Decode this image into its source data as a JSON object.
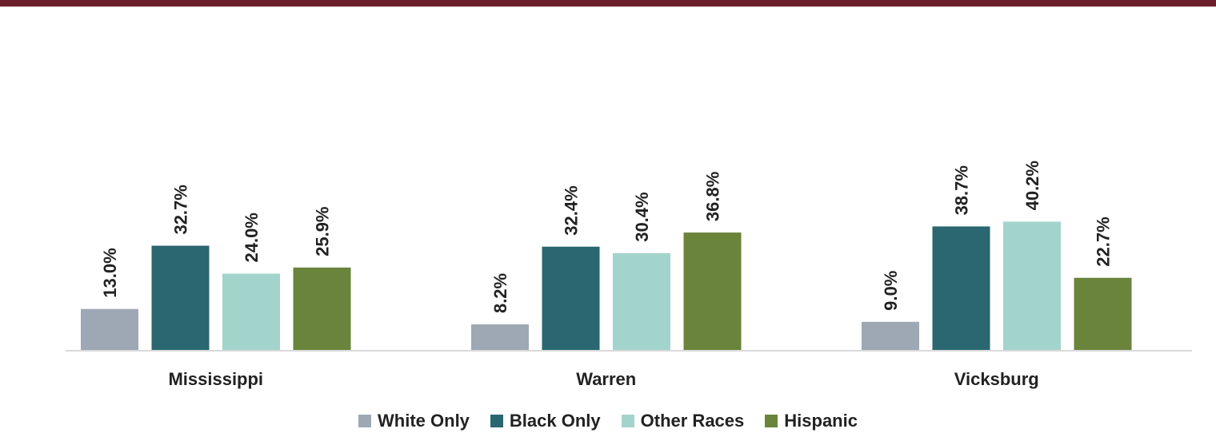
{
  "colors": {
    "top_bar": "#6b1e2c"
  },
  "chart_data": {
    "type": "bar",
    "categories": [
      "Mississippi",
      "Warren",
      "Vicksburg"
    ],
    "series": [
      {
        "name": "White Only",
        "color": "#9ea8b4",
        "values": [
          13.0,
          8.2,
          9.0
        ],
        "labels": [
          "13.0%",
          "8.2%",
          "9.0%"
        ]
      },
      {
        "name": "Black Only",
        "color": "#2a6770",
        "values": [
          32.7,
          32.4,
          38.7
        ],
        "labels": [
          "32.7%",
          "32.4%",
          "38.7%"
        ]
      },
      {
        "name": "Other Races",
        "color": "#a3d4cc",
        "values": [
          24.0,
          30.4,
          40.2
        ],
        "labels": [
          "24.0%",
          "30.4%",
          "40.2%"
        ]
      },
      {
        "name": "Hispanic",
        "color": "#6a843c",
        "values": [
          25.9,
          36.8,
          22.7
        ],
        "labels": [
          "25.9%",
          "36.8%",
          "22.7%"
        ]
      }
    ],
    "title": "",
    "xlabel": "",
    "ylabel": "",
    "ylim": [
      0,
      50
    ],
    "grid": false,
    "legend_position": "bottom"
  }
}
